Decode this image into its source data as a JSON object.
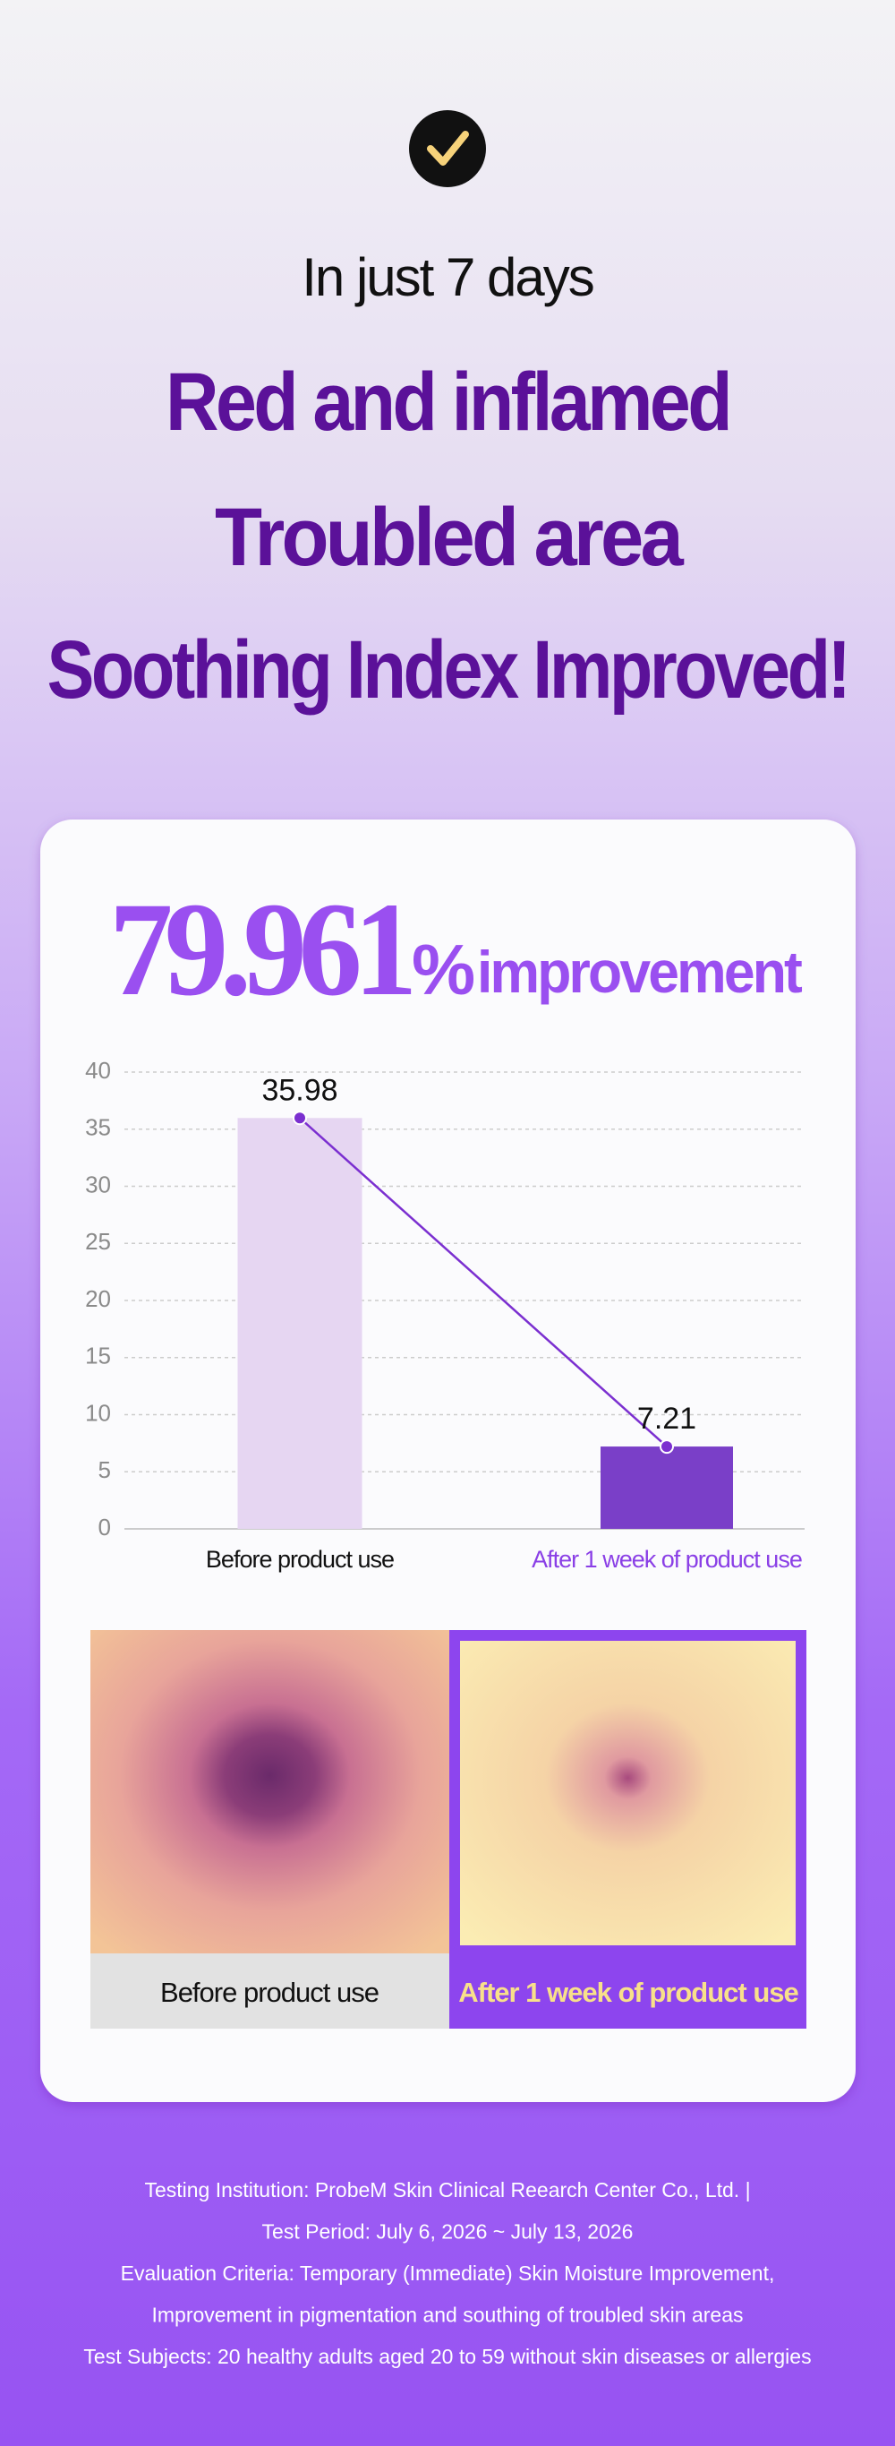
{
  "header": {
    "intro": "In just 7 days",
    "headline": [
      "Red and inflamed",
      "Troubled area",
      "Soothing Index Improved!"
    ]
  },
  "stat": {
    "number": "79.961",
    "unit": "%",
    "label": "improvement"
  },
  "chart_data": {
    "type": "bar_line",
    "categories": [
      "Before product use",
      "After 1 week of product use"
    ],
    "values": [
      35.98,
      7.21
    ],
    "colors": [
      "#e6d6f2",
      "#7a3fc8"
    ],
    "line_color": "#7b2fd0",
    "ylim": [
      0,
      40
    ],
    "yticks": [
      0,
      5,
      10,
      15,
      20,
      25,
      30,
      35,
      40
    ],
    "grid": true
  },
  "photos": {
    "before_label": "Before product use",
    "after_label": "After 1 week of product use"
  },
  "footer": [
    "Testing Institution: ProbeM Skin Clinical Reearch Center Co., Ltd. |",
    "Test Period: July 6, 2026 ~ July 13, 2026",
    "Evaluation Criteria: Temporary (Immediate) Skin Moisture Improvement,",
    "Improvement in pigmentation and southing of troubled skin areas",
    "Test Subjects: 20 healthy adults aged 20 to 59 without skin diseases or allergies"
  ]
}
